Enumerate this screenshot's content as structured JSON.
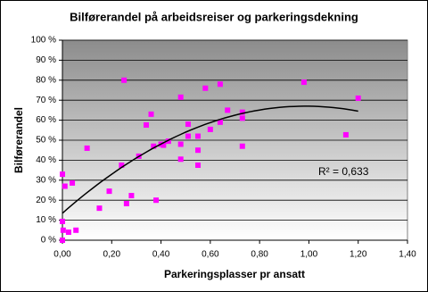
{
  "chart_data": {
    "type": "scatter",
    "title": "Bilførerandel på arbeidsreiser og parkeringsdekning",
    "x_label": "Parkeringsplasser pr ansatt",
    "y_label": "Bilførerandel",
    "annotation": "R² = 0,633",
    "color": "#ff00ff",
    "x": [
      0,
      0,
      0,
      0.01,
      0.003,
      0.025,
      0.04,
      0.055,
      0.1,
      0.15,
      0.19,
      0.24,
      0.25,
      0.26,
      0.28,
      0.31,
      0.34,
      0.36,
      0.37,
      0.38,
      0.4,
      0.41,
      0.43,
      0.48,
      0.48,
      0.48,
      0.51,
      0.51,
      0.55,
      0.55,
      0.55,
      0.58,
      0.6,
      0.64,
      0.64,
      0.67,
      0.73,
      0.73,
      0.73,
      0.98,
      1.15,
      1.2
    ],
    "values": [
      0,
      9.4,
      33,
      27,
      5,
      4,
      28.6,
      5,
      46,
      16,
      24.5,
      37.5,
      80,
      18.3,
      22.3,
      42,
      57.6,
      63,
      47,
      20,
      48,
      47.5,
      49.5,
      48,
      71.5,
      40.5,
      58,
      52,
      45,
      52,
      37.5,
      76,
      55.4,
      78,
      59,
      65,
      64,
      61,
      47,
      79,
      52.7,
      71
    ],
    "trendline": {
      "type": "polynomial",
      "coefficients": [
        13.5,
        108.5,
        -55
      ],
      "xrange": [
        0,
        1.2
      ]
    },
    "xlim": [
      0,
      1.4
    ],
    "xticks": [
      {
        "value": 0,
        "label": "0,00"
      },
      {
        "value": 0.2,
        "label": "0,20"
      },
      {
        "value": 0.4,
        "label": "0,40"
      },
      {
        "value": 0.6,
        "label": "0,60"
      },
      {
        "value": 0.8,
        "label": "0,80"
      },
      {
        "value": 1,
        "label": "1,00"
      },
      {
        "value": 1.2,
        "label": "1,20"
      },
      {
        "value": 1.4,
        "label": "1,40"
      }
    ],
    "ylim": [
      0,
      100
    ],
    "yticks": [
      {
        "value": 0,
        "label": "0 %"
      },
      {
        "value": 10,
        "label": "10 %"
      },
      {
        "value": 20,
        "label": "20 %"
      },
      {
        "value": 30,
        "label": "30 %"
      },
      {
        "value": 40,
        "label": "40 %"
      },
      {
        "value": 50,
        "label": "50 %"
      },
      {
        "value": 60,
        "label": "60 %"
      },
      {
        "value": 70,
        "label": "70 %"
      },
      {
        "value": 80,
        "label": "80 %"
      },
      {
        "value": 90,
        "label": "90 %"
      },
      {
        "value": 100,
        "label": "100 %"
      }
    ],
    "grid": true
  }
}
